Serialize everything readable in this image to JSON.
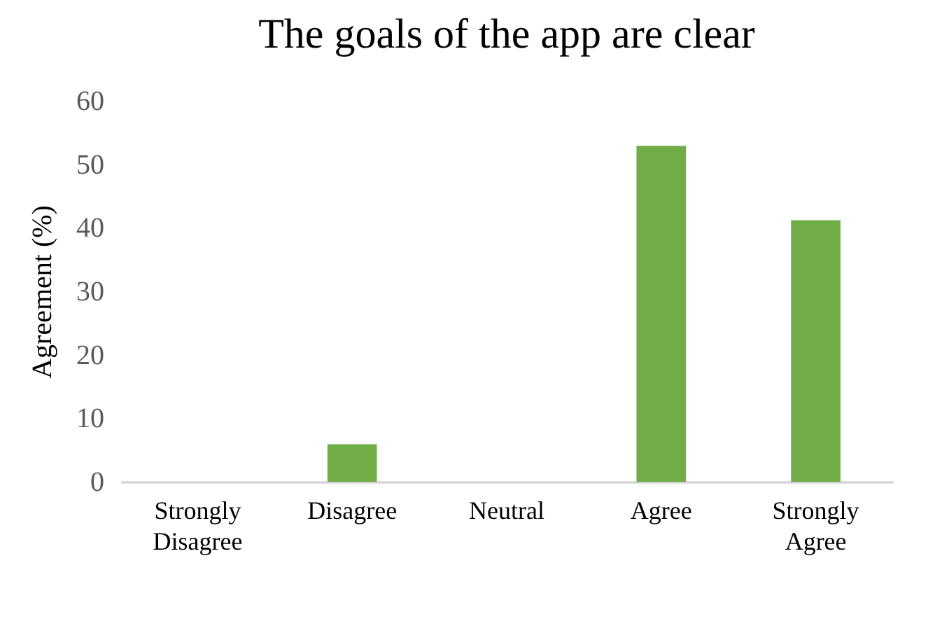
{
  "chart_data": {
    "type": "bar",
    "title": "The goals of the app are clear",
    "ylabel": "Agreement (%)",
    "categories": [
      "Strongly Disagree",
      "Disagree",
      "Neutral",
      "Agree",
      "Strongly Agree"
    ],
    "values": [
      0,
      5.9,
      0,
      52.9,
      41.2
    ],
    "color": "#70ad47",
    "ylim": [
      0,
      60
    ],
    "yticks": [
      0,
      10,
      20,
      30,
      40,
      50,
      60
    ],
    "grid": false
  }
}
